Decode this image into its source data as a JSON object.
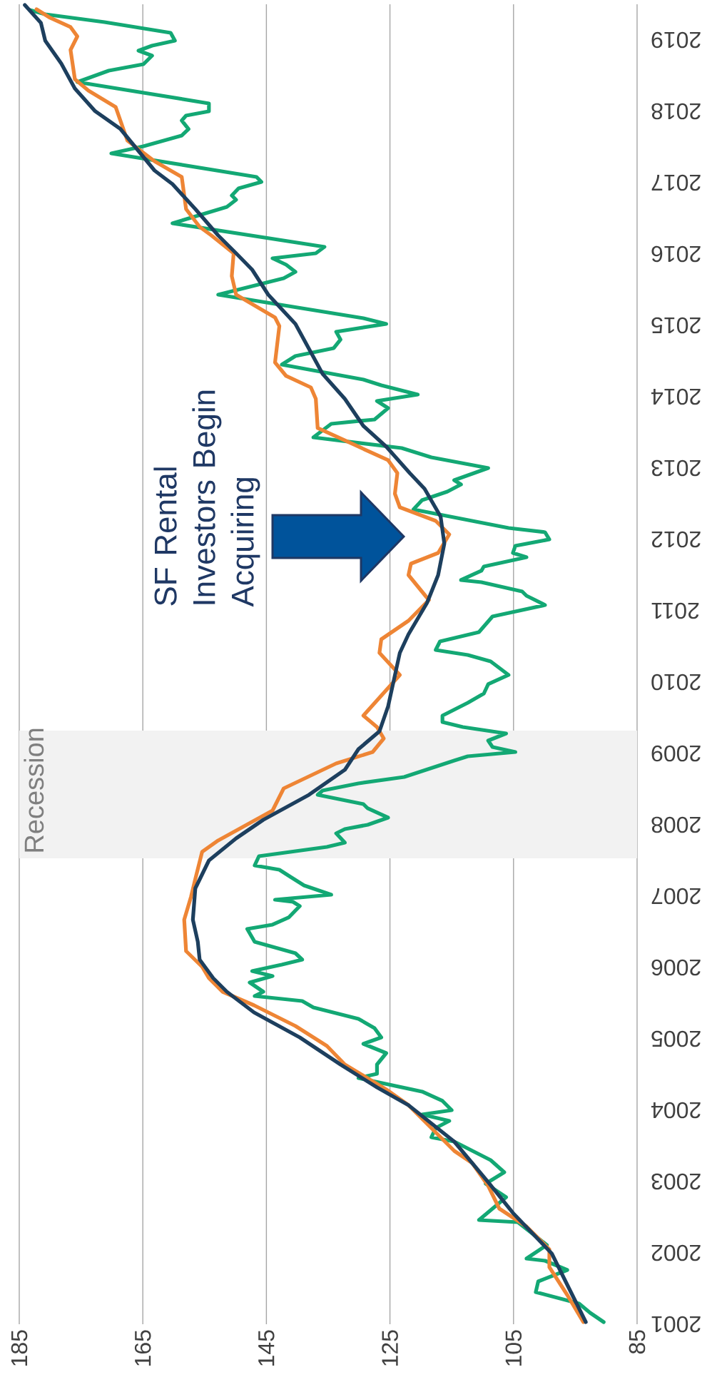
{
  "chart_data": {
    "type": "line",
    "xlim": [
      185,
      85
    ],
    "ylim": [
      2001,
      2019.5
    ],
    "yticks": [
      2001,
      2002,
      2003,
      2004,
      2005,
      2006,
      2007,
      2008,
      2009,
      2010,
      2011,
      2012,
      2013,
      2014,
      2015,
      2016,
      2017,
      2018,
      2019
    ],
    "xticks": [
      185,
      165,
      145,
      125,
      105,
      85
    ],
    "grid": "x",
    "marker": "none",
    "line_style": "solid",
    "bands": [
      {
        "axis": "y",
        "from": 2007.53,
        "to": 2009.32,
        "label": "Recession",
        "color": "#f2f2f2"
      }
    ],
    "annotations": [
      "SF Rental Investors Begin Acquiring"
    ],
    "series": [
      {
        "color": "#13a874",
        "values": [
          2001.03,
          2001.16,
          2001.29,
          2001.45,
          2001.6,
          2001.76,
          2001.89,
          2001.92,
          2002.11,
          2002.43,
          2002.46,
          2002.78,
          2002.97,
          2003.13,
          2003.3,
          2003.56,
          2003.62,
          2003.75,
          2003.85,
          2003.94,
          2004.0,
          2004.13,
          2004.26,
          2004.45,
          2004.51,
          2004.64,
          2004.8,
          2004.93,
          2005.02,
          2005.15,
          2005.28,
          2005.44,
          2005.53,
          2005.6,
          2005.66,
          2005.79,
          2005.88,
          2005.95,
          2006.04,
          2006.11,
          2006.2,
          2006.36,
          2006.54,
          2006.6,
          2006.7,
          2006.86,
          2006.92,
          2006.95,
          2007.02,
          2007.15,
          2007.27,
          2007.37,
          2007.43,
          2007.56,
          2007.69,
          2007.75,
          2007.88,
          2007.94,
          2008.0,
          2008.1,
          2008.23,
          2008.29,
          2008.42,
          2008.48,
          2008.58,
          2008.67,
          2008.9,
          2008.96,
          2009.02,
          2009.09,
          2009.18,
          2009.28,
          2009.37,
          2009.44,
          2009.53,
          2009.71,
          2009.84,
          2009.97,
          2010.1,
          2010.29,
          2010.38,
          2010.45,
          2010.57,
          2010.7,
          2010.92,
          2011.08,
          2011.21,
          2011.27,
          2011.4,
          2011.43,
          2011.56,
          2011.62,
          2011.75,
          2011.81,
          2011.91,
          2012.0,
          2012.1,
          2012.16,
          2012.42,
          2012.55,
          2012.67,
          2012.77,
          2012.83,
          2013.0,
          2013.15,
          2013.28,
          2013.43,
          2013.62,
          2013.68,
          2013.84,
          2013.94,
          2014.03,
          2014.16,
          2014.24,
          2014.45,
          2014.57,
          2014.68,
          2014.8,
          2014.91,
          2015.02,
          2015.1,
          2015.43,
          2015.66,
          2015.75,
          2015.85,
          2015.94,
          2016.01,
          2016.1,
          2016.43,
          2016.66,
          2016.76,
          2016.82,
          2016.92,
          2017.01,
          2017.08,
          2017.41,
          2017.51,
          2017.66,
          2017.75,
          2017.87,
          2017.94,
          2018.0,
          2018.11,
          2018.41,
          2018.57,
          2018.66,
          2018.78,
          2018.85,
          2018.92,
          2018.99,
          2019.1,
          2019.25,
          2019.36,
          2019.42
        ],
        "x": [
          90.4,
          92.6,
          94.4,
          101.4,
          101.0,
          96.3,
          99.9,
          102.9,
          99.6,
          104.3,
          110.6,
          106.2,
          109.5,
          106.5,
          108.7,
          114.6,
          118.3,
          117.6,
          115.4,
          119.8,
          115.0,
          116.5,
          119.8,
          130.1,
          127.1,
          127.1,
          125.6,
          129.3,
          126.4,
          127.5,
          130.1,
          137.4,
          139.2,
          146.9,
          145.5,
          147.7,
          144.0,
          147.3,
          142.5,
          139.2,
          140.3,
          146.9,
          148.1,
          144.0,
          141.4,
          139.6,
          140.7,
          143.6,
          134.5,
          138.9,
          141.1,
          142.9,
          146.9,
          146.2,
          135.2,
          132.3,
          133.7,
          132.3,
          128.6,
          125.3,
          128.6,
          129.3,
          136.7,
          135.9,
          130.1,
          122.7,
          114.6,
          112.4,
          104.7,
          108.4,
          109.1,
          106.2,
          113.2,
          116.5,
          116.5,
          112.4,
          109.8,
          109.1,
          105.8,
          108.7,
          112.4,
          117.6,
          116.9,
          110.6,
          108.4,
          99.9,
          102.9,
          103.6,
          110.2,
          113.5,
          110.2,
          109.8,
          102.9,
          105.1,
          104.7,
          99.2,
          99.9,
          105.8,
          121.2,
          119.8,
          115.7,
          113.5,
          114.6,
          109.1,
          118.3,
          123.1,
          137.4,
          134.5,
          127.5,
          125.3,
          127.1,
          120.5,
          126.4,
          129.3,
          142.5,
          140.3,
          134.1,
          133.0,
          133.7,
          125.6,
          129.3,
          152.8,
          142.2,
          140.3,
          141.8,
          144.0,
          137.0,
          135.6,
          160.2,
          151.4,
          149.9,
          150.6,
          149.5,
          145.8,
          146.6,
          170.1,
          164.9,
          158.7,
          157.6,
          158.7,
          158.0,
          154.3,
          154.3,
          175.6,
          170.5,
          164.9,
          163.5,
          165.7,
          163.5,
          159.8,
          160.5,
          171.2,
          180.8,
          183.3
        ]
      },
      {
        "color": "#ee8535",
        "values": [
          2001.03,
          2001.41,
          2001.8,
          2002.05,
          2002.37,
          2002.62,
          2002.94,
          2003.26,
          2003.43,
          2003.81,
          2004.07,
          2004.29,
          2004.64,
          2004.9,
          2005.18,
          2005.47,
          2005.66,
          2005.85,
          2006.01,
          2006.23,
          2006.67,
          2006.99,
          2007.24,
          2007.62,
          2007.78,
          2008.2,
          2008.51,
          2008.86,
          2009.02,
          2009.21,
          2009.37,
          2009.53,
          2010.1,
          2010.41,
          2010.6,
          2010.86,
          2011.15,
          2011.5,
          2011.66,
          2011.81,
          2012.07,
          2012.26,
          2012.45,
          2012.64,
          2012.93,
          2013.11,
          2013.3,
          2013.56,
          2013.97,
          2014.13,
          2014.29,
          2014.48,
          2014.99,
          2015.11,
          2015.43,
          2015.69,
          2016.01,
          2016.26,
          2016.38,
          2016.63,
          2017.08,
          2017.3,
          2017.59,
          2018.06,
          2018.29,
          2018.45,
          2018.86,
          2019.05,
          2019.18,
          2019.31,
          2019.43
        ],
        "x": [
          93.7,
          96.3,
          99.2,
          99.2,
          102.9,
          107.3,
          109.1,
          111.7,
          114.6,
          119.0,
          122.0,
          125.6,
          132.3,
          135.2,
          140.3,
          147.0,
          152.1,
          154.3,
          155.4,
          158.0,
          158.3,
          157.2,
          156.5,
          155.4,
          152.8,
          144.0,
          142.2,
          133.7,
          127.8,
          126.0,
          127.1,
          129.3,
          123.4,
          126.7,
          126.4,
          122.0,
          118.7,
          122.0,
          121.6,
          117.2,
          115.4,
          117.6,
          123.4,
          124.2,
          123.8,
          125.3,
          130.1,
          136.7,
          137.0,
          137.8,
          141.8,
          143.6,
          142.9,
          143.6,
          149.9,
          150.6,
          150.3,
          153.9,
          155.8,
          158.0,
          158.7,
          163.1,
          167.5,
          169.4,
          173.8,
          176.0,
          176.7,
          175.6,
          176.7,
          180.0,
          182.2
        ]
      },
      {
        "color": "#1d3f5e",
        "values": [
          2001.03,
          2001.5,
          2001.99,
          2002.56,
          2002.99,
          2003.56,
          2004.07,
          2004.32,
          2004.64,
          2005.02,
          2005.37,
          2005.66,
          2005.85,
          2006.11,
          2006.36,
          2006.67,
          2007.11,
          2007.5,
          2007.81,
          2008.07,
          2008.42,
          2008.77,
          2009.06,
          2009.31,
          2009.66,
          2010.41,
          2010.67,
          2011.11,
          2011.5,
          2011.94,
          2012.32,
          2012.71,
          2012.93,
          2013.3,
          2013.59,
          2013.97,
          2014.32,
          2015.02,
          2015.43,
          2015.78,
          2016.01,
          2016.26,
          2016.63,
          2016.98,
          2017.17,
          2017.75,
          2018.0,
          2018.32,
          2018.67,
          2018.99,
          2019.24,
          2019.49
        ],
        "x": [
          93.3,
          96.0,
          98.8,
          105.1,
          109.1,
          114.6,
          122.0,
          127.1,
          133.0,
          139.6,
          147.0,
          151.4,
          153.6,
          155.8,
          156.1,
          156.9,
          156.5,
          154.3,
          149.9,
          145.5,
          138.1,
          132.3,
          130.1,
          126.7,
          125.3,
          123.4,
          122.0,
          119.0,
          117.2,
          116.2,
          116.8,
          119.4,
          121.8,
          125.6,
          129.3,
          132.3,
          135.9,
          140.3,
          144.7,
          147.3,
          149.9,
          152.8,
          156.5,
          160.2,
          163.1,
          168.6,
          172.7,
          176.0,
          178.2,
          180.8,
          181.5,
          184.1
        ]
      }
    ]
  }
}
